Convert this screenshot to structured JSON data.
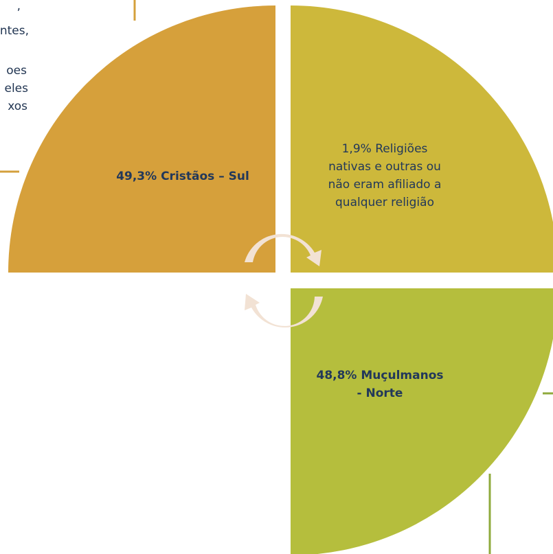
{
  "side_note": {
    "lines": [
      ",",
      "ntes,",
      "oes",
      "eles",
      "xos"
    ]
  },
  "segments": [
    {
      "lines": [
        "49,3% Cristãos –  Sul"
      ]
    },
    {
      "lines": [
        "1,9% Religiões",
        "nativas e outras ou",
        "não eram afiliado a",
        "qualquer religião"
      ]
    },
    {
      "lines": [
        "48,8% Muçulmanos",
        "- Norte"
      ]
    }
  ]
}
